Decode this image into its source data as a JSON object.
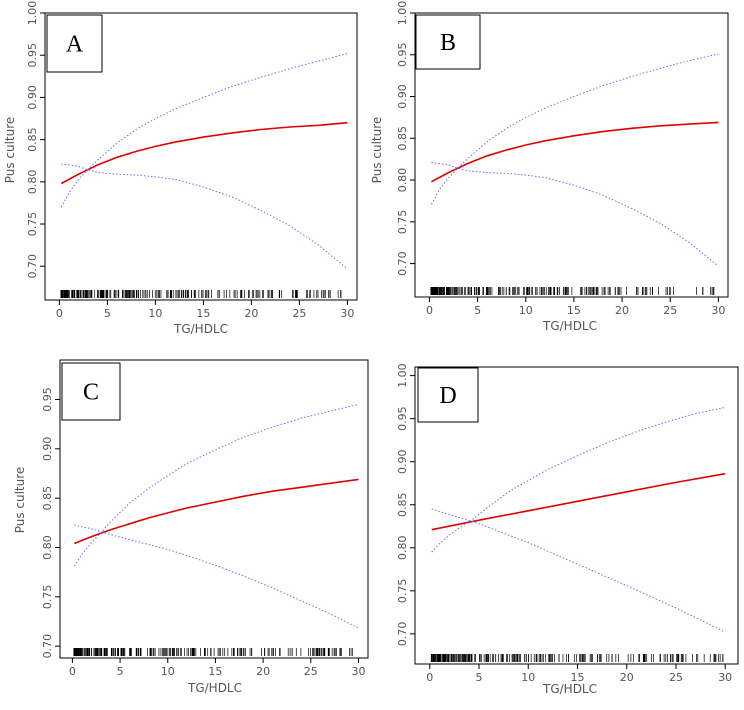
{
  "chart_data": [
    {
      "type": "line",
      "panel_label": "A",
      "xlabel": "TG/HDLC",
      "ylabel": "Pus culture",
      "xlim": [
        -1.5,
        31
      ],
      "ylim": [
        0.66,
        1.0
      ],
      "xticks": [
        0,
        5,
        10,
        15,
        20,
        25,
        30
      ],
      "yticks": [
        0.7,
        0.75,
        0.8,
        0.85,
        0.9,
        0.95,
        1.0
      ],
      "ytick_labels": [
        "0.70",
        "0.75",
        "0.80",
        "0.85",
        "0.90",
        "0.95",
        "1.00"
      ],
      "series": [
        {
          "name": "fit",
          "x": [
            0.2,
            2,
            4,
            6,
            8,
            10,
            12,
            15,
            18,
            21,
            24,
            27,
            30
          ],
          "y": [
            0.798,
            0.809,
            0.82,
            0.829,
            0.836,
            0.842,
            0.847,
            0.853,
            0.858,
            0.862,
            0.865,
            0.867,
            0.87
          ]
        },
        {
          "name": "upper 95% CI",
          "x": [
            0.2,
            1,
            2,
            3,
            4,
            6,
            8,
            10,
            12,
            15,
            18,
            21,
            24,
            27,
            30
          ],
          "y": [
            0.77,
            0.787,
            0.803,
            0.815,
            0.826,
            0.846,
            0.862,
            0.875,
            0.886,
            0.9,
            0.913,
            0.924,
            0.934,
            0.943,
            0.952
          ]
        },
        {
          "name": "lower 95% CI",
          "x": [
            0.2,
            1,
            2,
            3,
            4,
            6,
            8,
            10,
            12,
            15,
            18,
            21,
            24,
            27,
            30
          ],
          "y": [
            0.821,
            0.82,
            0.818,
            0.814,
            0.811,
            0.809,
            0.808,
            0.806,
            0.803,
            0.794,
            0.782,
            0.766,
            0.748,
            0.725,
            0.697
          ]
        }
      ]
    },
    {
      "type": "line",
      "panel_label": "B",
      "xlabel": "TG/HDLC",
      "ylabel": "Pus culture",
      "xlim": [
        -1.5,
        31
      ],
      "ylim": [
        0.66,
        1.0
      ],
      "xticks": [
        0,
        5,
        10,
        15,
        20,
        25,
        30
      ],
      "yticks": [
        0.7,
        0.75,
        0.8,
        0.85,
        0.9,
        0.95,
        1.0
      ],
      "ytick_labels": [
        "0.70",
        "0.75",
        "0.80",
        "0.85",
        "0.90",
        "0.95",
        "1.00"
      ],
      "series": [
        {
          "name": "fit",
          "x": [
            0.2,
            2,
            4,
            6,
            8,
            10,
            12,
            15,
            18,
            21,
            24,
            27,
            30
          ],
          "y": [
            0.798,
            0.809,
            0.82,
            0.829,
            0.836,
            0.842,
            0.847,
            0.853,
            0.858,
            0.862,
            0.865,
            0.867,
            0.869
          ]
        },
        {
          "name": "upper 95% CI",
          "x": [
            0.2,
            1,
            2,
            3,
            4,
            6,
            8,
            10,
            12,
            15,
            18,
            21,
            24,
            27,
            30
          ],
          "y": [
            0.771,
            0.788,
            0.803,
            0.815,
            0.826,
            0.846,
            0.862,
            0.875,
            0.886,
            0.9,
            0.913,
            0.924,
            0.934,
            0.943,
            0.951
          ]
        },
        {
          "name": "lower 95% CI",
          "x": [
            0.2,
            1,
            2,
            3,
            4,
            6,
            8,
            10,
            12,
            15,
            18,
            21,
            24,
            27,
            30
          ],
          "y": [
            0.821,
            0.82,
            0.818,
            0.814,
            0.811,
            0.809,
            0.808,
            0.806,
            0.803,
            0.794,
            0.782,
            0.766,
            0.748,
            0.725,
            0.697
          ]
        }
      ]
    },
    {
      "type": "line",
      "panel_label": "C",
      "xlabel": "TG/HDLC",
      "ylabel": "Pus culture",
      "xlim": [
        -1.3,
        31
      ],
      "ylim": [
        0.688,
        0.99
      ],
      "xticks": [
        0,
        5,
        10,
        15,
        20,
        25,
        30
      ],
      "yticks": [
        0.7,
        0.75,
        0.8,
        0.85,
        0.9,
        0.95
      ],
      "ytick_labels": [
        "0.70",
        "0.75",
        "0.80",
        "0.85",
        "0.90",
        "0.95"
      ],
      "series": [
        {
          "name": "fit",
          "x": [
            0.2,
            2,
            4,
            6,
            8,
            10,
            12,
            15,
            18,
            21,
            24,
            27,
            30
          ],
          "y": [
            0.804,
            0.811,
            0.818,
            0.824,
            0.83,
            0.835,
            0.84,
            0.846,
            0.852,
            0.857,
            0.861,
            0.865,
            0.869
          ]
        },
        {
          "name": "upper 95% CI",
          "x": [
            0.2,
            1,
            2,
            3,
            4,
            6,
            8,
            10,
            12,
            15,
            18,
            21,
            24,
            27,
            30
          ],
          "y": [
            0.781,
            0.793,
            0.805,
            0.815,
            0.826,
            0.845,
            0.86,
            0.873,
            0.885,
            0.899,
            0.912,
            0.922,
            0.931,
            0.938,
            0.945
          ]
        },
        {
          "name": "lower 95% CI",
          "x": [
            0.2,
            1,
            2,
            3,
            4,
            6,
            8,
            10,
            12,
            15,
            18,
            21,
            24,
            27,
            30
          ],
          "y": [
            0.823,
            0.821,
            0.819,
            0.816,
            0.813,
            0.808,
            0.803,
            0.798,
            0.792,
            0.782,
            0.771,
            0.759,
            0.746,
            0.733,
            0.718
          ]
        }
      ]
    },
    {
      "type": "line",
      "panel_label": "D",
      "xlabel": "TG/HDLC",
      "ylabel": "",
      "xlim": [
        -1.5,
        31.3
      ],
      "ylim": [
        0.665,
        1.01
      ],
      "xticks": [
        0,
        5,
        10,
        15,
        20,
        25,
        30
      ],
      "yticks": [
        0.7,
        0.75,
        0.8,
        0.85,
        0.9,
        0.95,
        1.0
      ],
      "ytick_labels": [
        "0.70",
        "0.75",
        "0.80",
        "0.85",
        "0.90",
        "0.95",
        "1.00"
      ],
      "series": [
        {
          "name": "fit",
          "x": [
            0.2,
            5,
            10,
            15,
            20,
            25,
            30
          ],
          "y": [
            0.821,
            0.832,
            0.843,
            0.854,
            0.865,
            0.876,
            0.886
          ]
        },
        {
          "name": "upper 95% CI",
          "x": [
            0.2,
            1,
            2,
            3,
            4,
            6,
            8,
            10,
            12,
            15,
            18,
            21,
            24,
            27,
            30
          ],
          "y": [
            0.795,
            0.805,
            0.815,
            0.823,
            0.83,
            0.848,
            0.865,
            0.878,
            0.891,
            0.907,
            0.922,
            0.935,
            0.946,
            0.956,
            0.963
          ]
        },
        {
          "name": "lower 95% CI",
          "x": [
            0.2,
            5,
            10,
            15,
            20,
            25,
            30
          ],
          "y": [
            0.845,
            0.828,
            0.806,
            0.781,
            0.756,
            0.73,
            0.702
          ]
        }
      ]
    }
  ]
}
